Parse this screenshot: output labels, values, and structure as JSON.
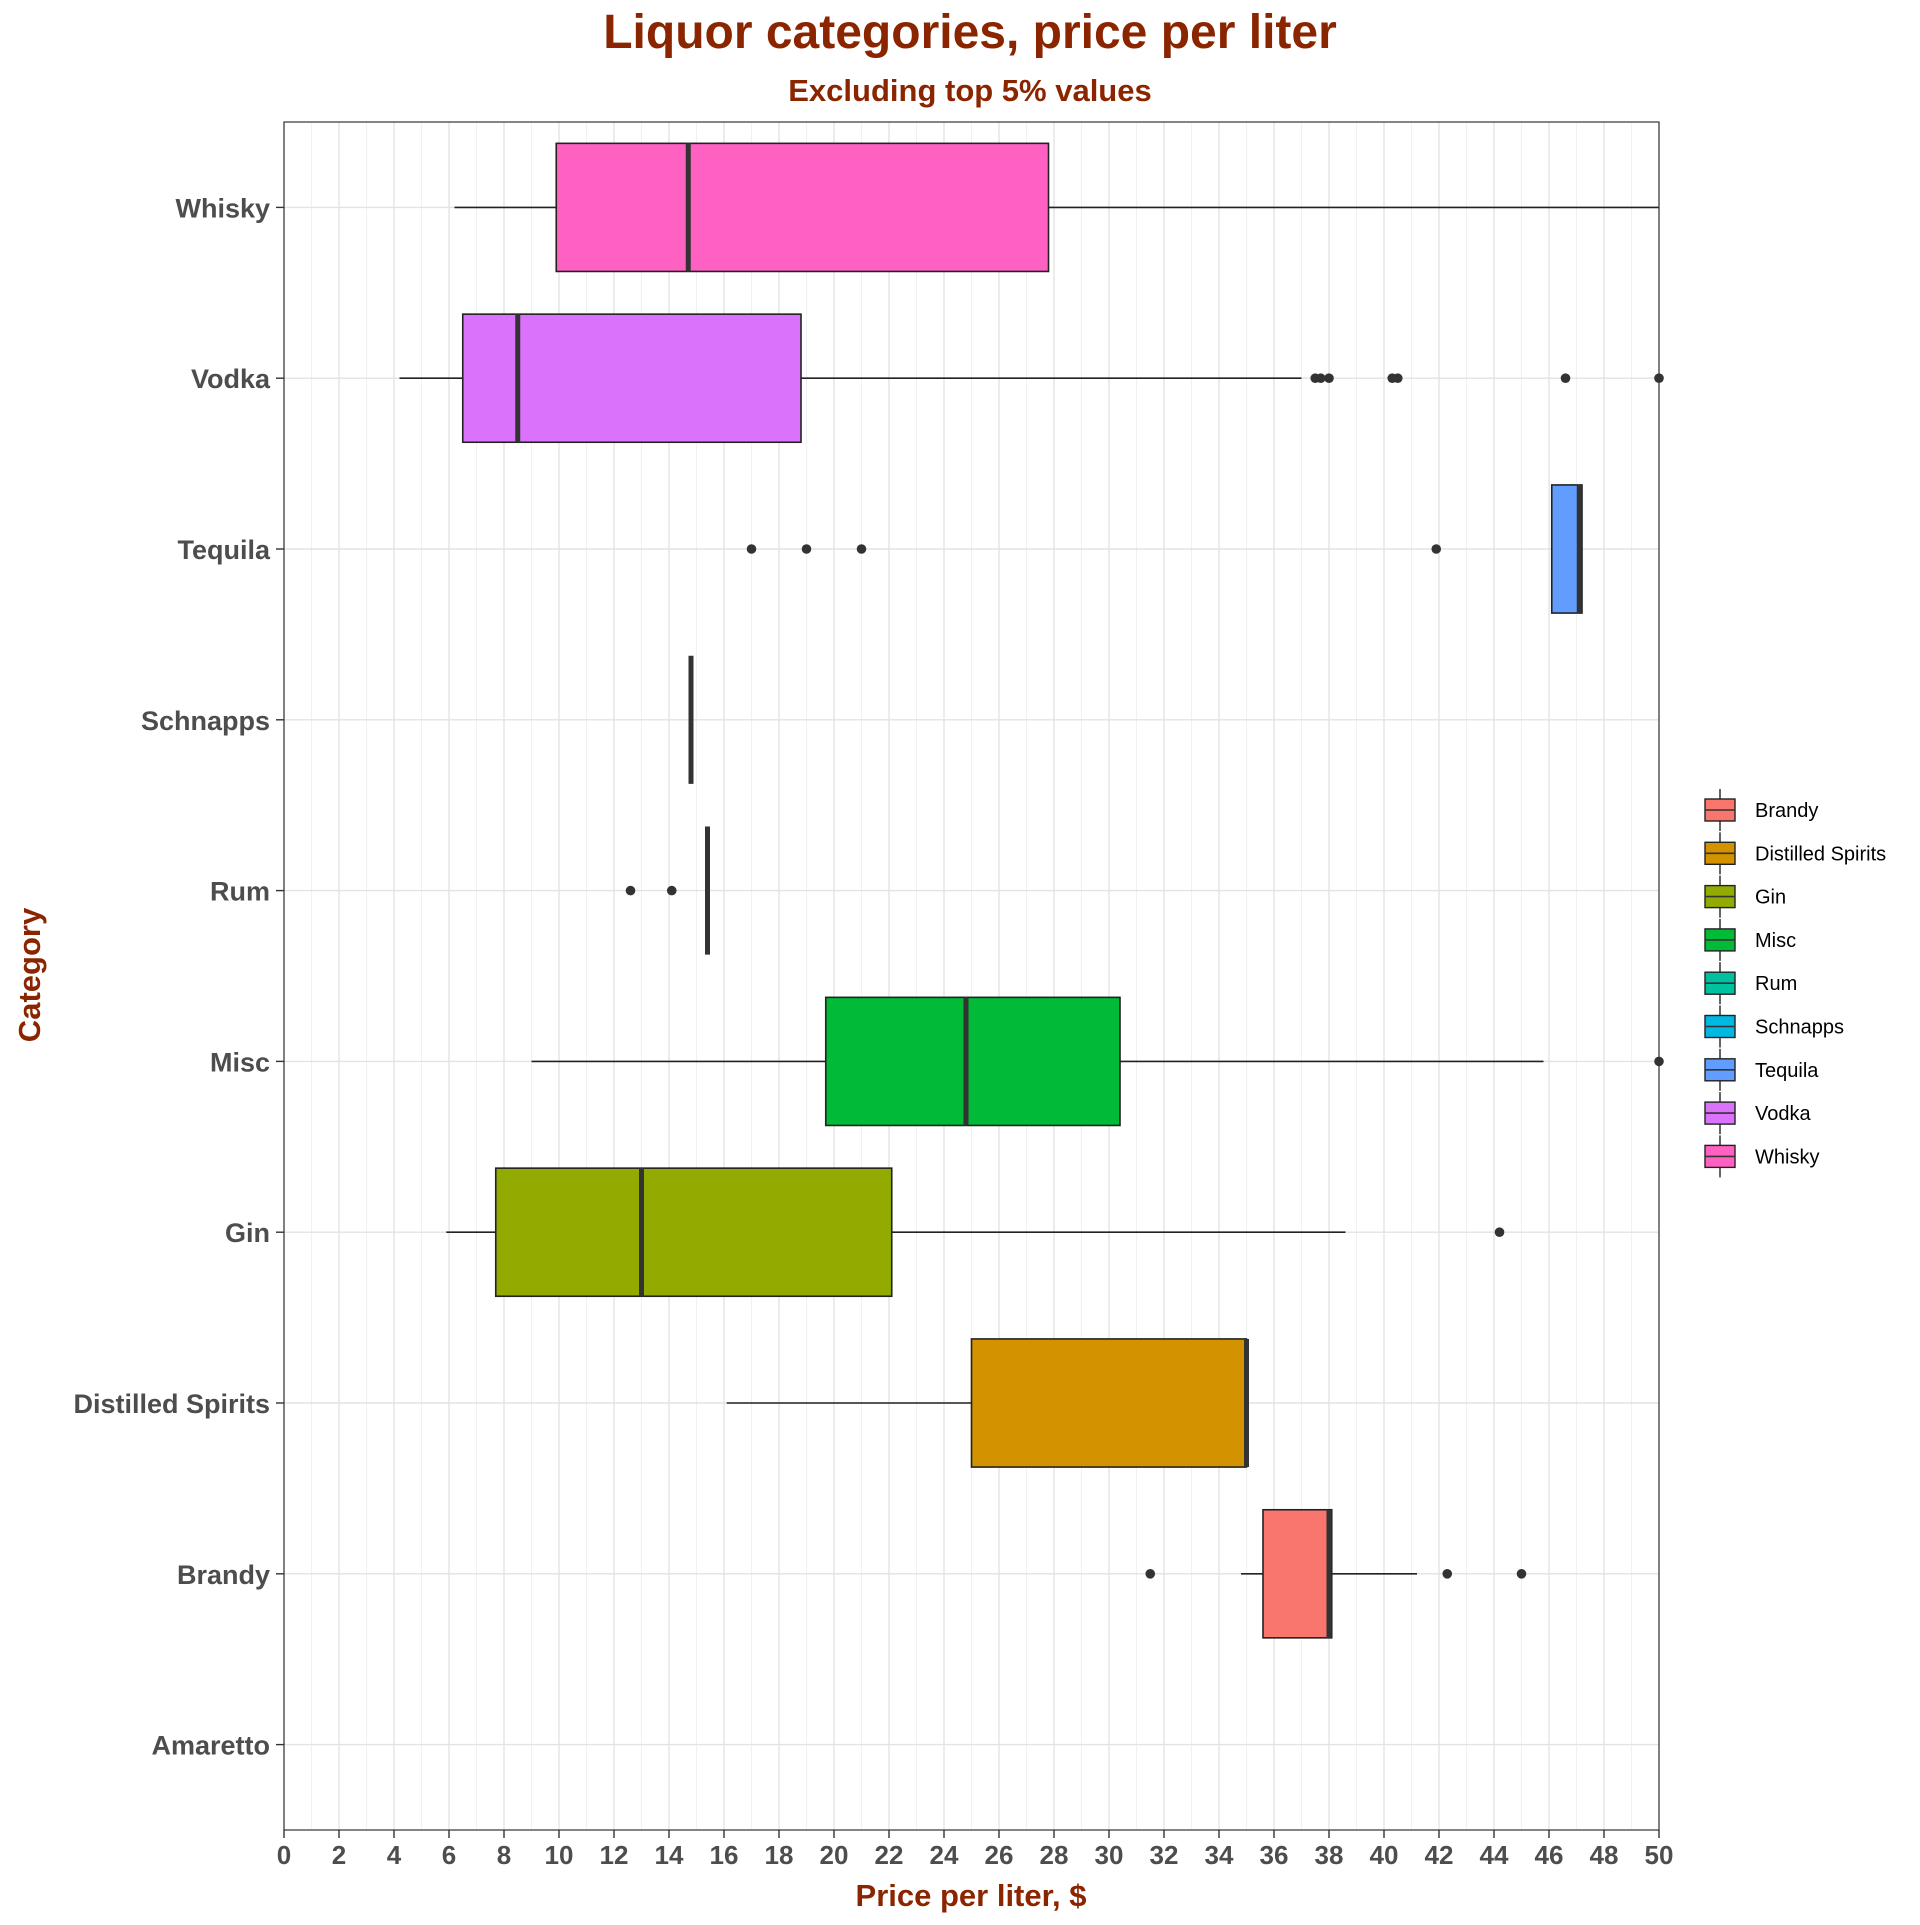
{
  "chart_data": {
    "type": "boxplot",
    "orientation": "horizontal",
    "title": "Liquor categories, price per liter",
    "subtitle": "Excluding top 5% values",
    "xlabel": "Price per liter, $",
    "ylabel": "Category",
    "xlim": [
      0,
      50
    ],
    "x_ticks": [
      0,
      2,
      4,
      6,
      8,
      10,
      12,
      14,
      16,
      18,
      20,
      22,
      24,
      26,
      28,
      30,
      32,
      34,
      36,
      38,
      40,
      42,
      44,
      46,
      48,
      50
    ],
    "categories": [
      "Amaretto",
      "Brandy",
      "Distilled Spirits",
      "Gin",
      "Misc",
      "Rum",
      "Schnapps",
      "Tequila",
      "Vodka",
      "Whisky"
    ],
    "grid": true,
    "legend_position": "right",
    "legend": [
      "Brandy",
      "Distilled Spirits",
      "Gin",
      "Misc",
      "Rum",
      "Schnapps",
      "Tequila",
      "Vodka",
      "Whisky"
    ],
    "colors": {
      "Brandy": "#F8766D",
      "Distilled Spirits": "#D39200",
      "Gin": "#93AA00",
      "Misc": "#00BA38",
      "Rum": "#00C19F",
      "Schnapps": "#00B9E3",
      "Tequila": "#619CFF",
      "Vodka": "#DB72FB",
      "Whisky": "#FF61C3"
    },
    "series": [
      {
        "category": "Brandy",
        "whisker_low": 34.8,
        "q1": 35.6,
        "median": 38.0,
        "q3": 38.1,
        "whisker_high": 41.2,
        "outliers": [
          31.5,
          42.3,
          45.0
        ]
      },
      {
        "category": "Distilled Spirits",
        "whisker_low": 16.1,
        "q1": 25.0,
        "median": 35.0,
        "q3": 35.0,
        "whisker_high": 35.0,
        "outliers": []
      },
      {
        "category": "Gin",
        "whisker_low": 5.9,
        "q1": 7.7,
        "median": 13.0,
        "q3": 22.1,
        "whisker_high": 38.6,
        "outliers": [
          44.2
        ]
      },
      {
        "category": "Misc",
        "whisker_low": 9.0,
        "q1": 19.7,
        "median": 24.8,
        "q3": 30.4,
        "whisker_high": 45.8,
        "outliers": [
          50.0
        ]
      },
      {
        "category": "Rum",
        "whisker_low": 15.4,
        "q1": 15.4,
        "median": 15.4,
        "q3": 15.4,
        "whisker_high": 15.4,
        "outliers": [
          12.6,
          14.1
        ]
      },
      {
        "category": "Schnapps",
        "whisker_low": 14.8,
        "q1": 14.8,
        "median": 14.8,
        "q3": 14.8,
        "whisker_high": 14.8,
        "outliers": []
      },
      {
        "category": "Tequila",
        "whisker_low": 46.1,
        "q1": 46.1,
        "median": 47.1,
        "q3": 47.2,
        "whisker_high": 47.2,
        "outliers": [
          17.0,
          19.0,
          21.0,
          41.9
        ]
      },
      {
        "category": "Vodka",
        "whisker_low": 4.2,
        "q1": 6.5,
        "median": 8.5,
        "q3": 18.8,
        "whisker_high": 37.0,
        "outliers": [
          37.5,
          37.7,
          38.0,
          40.3,
          40.5,
          46.6,
          50.0
        ]
      },
      {
        "category": "Whisky",
        "whisker_low": 6.2,
        "q1": 9.9,
        "median": 14.7,
        "q3": 27.8,
        "whisker_high": 50.0,
        "outliers": []
      }
    ]
  }
}
